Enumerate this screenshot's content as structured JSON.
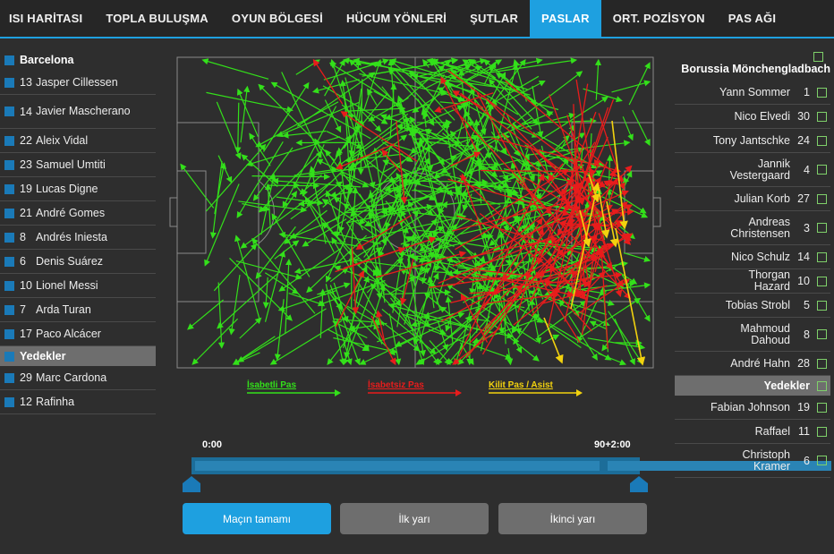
{
  "tabs": [
    {
      "label": "ISI HARİTASI"
    },
    {
      "label": "TOPLA BULUŞMA"
    },
    {
      "label": "OYUN BÖLGESİ"
    },
    {
      "label": "HÜCUM YÖNLERİ"
    },
    {
      "label": "ŞUTLAR"
    },
    {
      "label": "PASLAR"
    },
    {
      "label": "ORT. POZİSYON"
    },
    {
      "label": "PAS AĞI"
    }
  ],
  "active_tab": "PASLAR",
  "home_team": {
    "name": "Barcelona",
    "players": [
      {
        "num": "13",
        "name": "Jasper Cillessen"
      },
      {
        "num": "14",
        "name": "Javier Mascherano"
      },
      {
        "num": "22",
        "name": "Aleix Vidal"
      },
      {
        "num": "23",
        "name": "Samuel Umtiti"
      },
      {
        "num": "19",
        "name": "Lucas Digne"
      },
      {
        "num": "21",
        "name": "André Gomes"
      },
      {
        "num": "8",
        "name": "Andrés Iniesta"
      },
      {
        "num": "6",
        "name": "Denis Suárez"
      },
      {
        "num": "10",
        "name": "Lionel Messi"
      },
      {
        "num": "7",
        "name": "Arda Turan"
      },
      {
        "num": "17",
        "name": "Paco Alcácer"
      }
    ],
    "subs_label": "Yedekler",
    "subs": [
      {
        "num": "29",
        "name": "Marc Cardona"
      },
      {
        "num": "12",
        "name": "Rafinha"
      }
    ]
  },
  "away_team": {
    "name": "Borussia Mönchengladbach",
    "players": [
      {
        "num": "1",
        "name": "Yann Sommer"
      },
      {
        "num": "30",
        "name": "Nico Elvedi"
      },
      {
        "num": "24",
        "name": "Tony Jantschke"
      },
      {
        "num": "4",
        "name": "Jannik Vestergaard"
      },
      {
        "num": "27",
        "name": "Julian Korb"
      },
      {
        "num": "3",
        "name": "Andreas Christensen"
      },
      {
        "num": "14",
        "name": "Nico Schulz"
      },
      {
        "num": "10",
        "name": "Thorgan Hazard"
      },
      {
        "num": "5",
        "name": "Tobias Strobl"
      },
      {
        "num": "8",
        "name": "Mahmoud Dahoud"
      },
      {
        "num": "28",
        "name": "André Hahn"
      }
    ],
    "subs_label": "Yedekler",
    "subs": [
      {
        "num": "19",
        "name": "Fabian Johnson"
      },
      {
        "num": "11",
        "name": "Raffael"
      },
      {
        "num": "6",
        "name": "Christoph Kramer"
      }
    ]
  },
  "legend": {
    "accurate": "İsabetli Pas",
    "inaccurate": "İsabetsiz Pas",
    "key": "Kilit Pas / Asist"
  },
  "colors": {
    "accurate": "#33e01a",
    "inaccurate": "#e81c1c",
    "key": "#f2d20e",
    "accent": "#1ea0e0",
    "home_square": "#1a7ab8",
    "away_check": "#7fd16a"
  },
  "timeline": {
    "start": "0:00",
    "end": "90+2:00"
  },
  "buttons": {
    "full": "Maçın tamamı",
    "first": "İlk yarı",
    "second": "İkinci yarı"
  }
}
